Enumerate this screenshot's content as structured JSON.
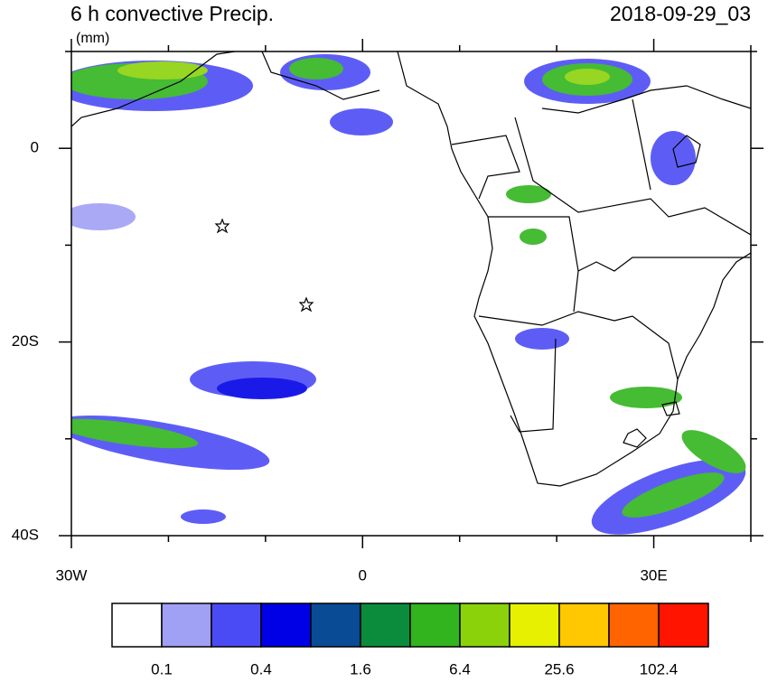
{
  "map": {
    "title": "6 h convective Precip.",
    "units": "(mm)",
    "date": "2018-09-29_03",
    "xlim": [
      -30,
      40
    ],
    "ylim": [
      -40,
      10
    ],
    "xticks": [
      {
        "value": -30,
        "label": "30W"
      },
      {
        "value": 0,
        "label": "0"
      },
      {
        "value": 30,
        "label": "30E"
      }
    ],
    "xminorticks": [
      -20,
      -10,
      10,
      20,
      40
    ],
    "yticks": [
      {
        "value": 0,
        "label": "0"
      },
      {
        "value": -20,
        "label": "20S"
      },
      {
        "value": -40,
        "label": "40S"
      }
    ],
    "yminorticks": [
      10,
      -10,
      -30
    ],
    "colorbar": {
      "colors": [
        "#ffffff",
        "#a0a0f5",
        "#4b4bf5",
        "#0000e6",
        "#0a4b96",
        "#0a8c3c",
        "#32b41e",
        "#8cd20a",
        "#e6f000",
        "#ffc800",
        "#ff6400",
        "#ff1400"
      ],
      "levels": [
        0.1,
        0.4,
        1.6,
        6.4,
        25.6,
        102.4
      ]
    }
  }
}
